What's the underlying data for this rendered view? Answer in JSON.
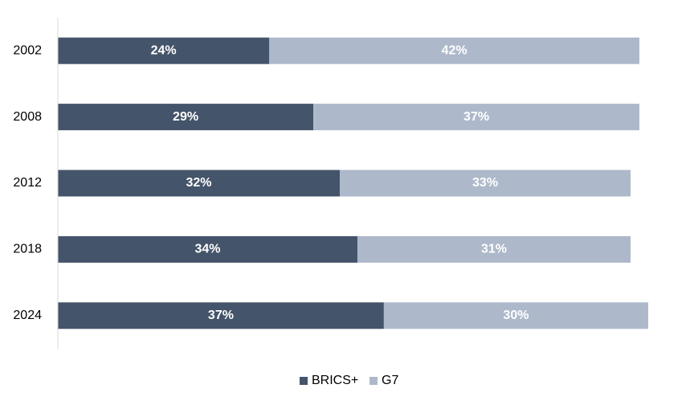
{
  "chart_data": {
    "type": "bar",
    "orientation": "horizontal",
    "stacked": true,
    "categories": [
      "2002",
      "2008",
      "2012",
      "2018",
      "2024"
    ],
    "series": [
      {
        "name": "BRICS+",
        "values": [
          24,
          29,
          32,
          34,
          37
        ],
        "labels": [
          "24%",
          "29%",
          "32%",
          "34%",
          "37%"
        ],
        "color": "#44546a"
      },
      {
        "name": "G7",
        "values": [
          42,
          37,
          33,
          31,
          30
        ],
        "labels": [
          "42%",
          "37%",
          "33%",
          "31%",
          "30%"
        ],
        "color": "#adb9ca"
      }
    ],
    "title": "",
    "xlabel": "",
    "ylabel": "",
    "xlim": [
      0,
      67
    ],
    "grid": false,
    "legend_position": "bottom"
  }
}
